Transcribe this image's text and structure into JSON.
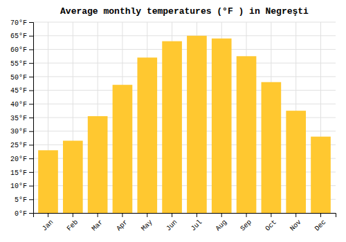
{
  "chart_data": {
    "type": "bar",
    "title": "Average monthly temperatures (°F ) in Negreşti",
    "categories": [
      "Jan",
      "Feb",
      "Mar",
      "Apr",
      "May",
      "Jun",
      "Jul",
      "Aug",
      "Sep",
      "Oct",
      "Nov",
      "Dec"
    ],
    "values": [
      23,
      26.5,
      35.5,
      47,
      57,
      63,
      65,
      64,
      57.5,
      48,
      37.5,
      28
    ],
    "color": "#FFC830",
    "ylim": [
      0,
      70
    ],
    "yticks": [
      {
        "value": 0,
        "label": "0°F"
      },
      {
        "value": 5,
        "label": "5°F"
      },
      {
        "value": 10,
        "label": "10°F"
      },
      {
        "value": 15,
        "label": "15°F"
      },
      {
        "value": 20,
        "label": "20°F"
      },
      {
        "value": 25,
        "label": "25°F"
      },
      {
        "value": 30,
        "label": "30°F"
      },
      {
        "value": 35,
        "label": "35°F"
      },
      {
        "value": 40,
        "label": "40°F"
      },
      {
        "value": 45,
        "label": "45°F"
      },
      {
        "value": 50,
        "label": "50°F"
      },
      {
        "value": 55,
        "label": "55°F"
      },
      {
        "value": 60,
        "label": "60°F"
      },
      {
        "value": 65,
        "label": "65°F"
      },
      {
        "value": 70,
        "label": "70°F"
      }
    ],
    "grid": true
  }
}
